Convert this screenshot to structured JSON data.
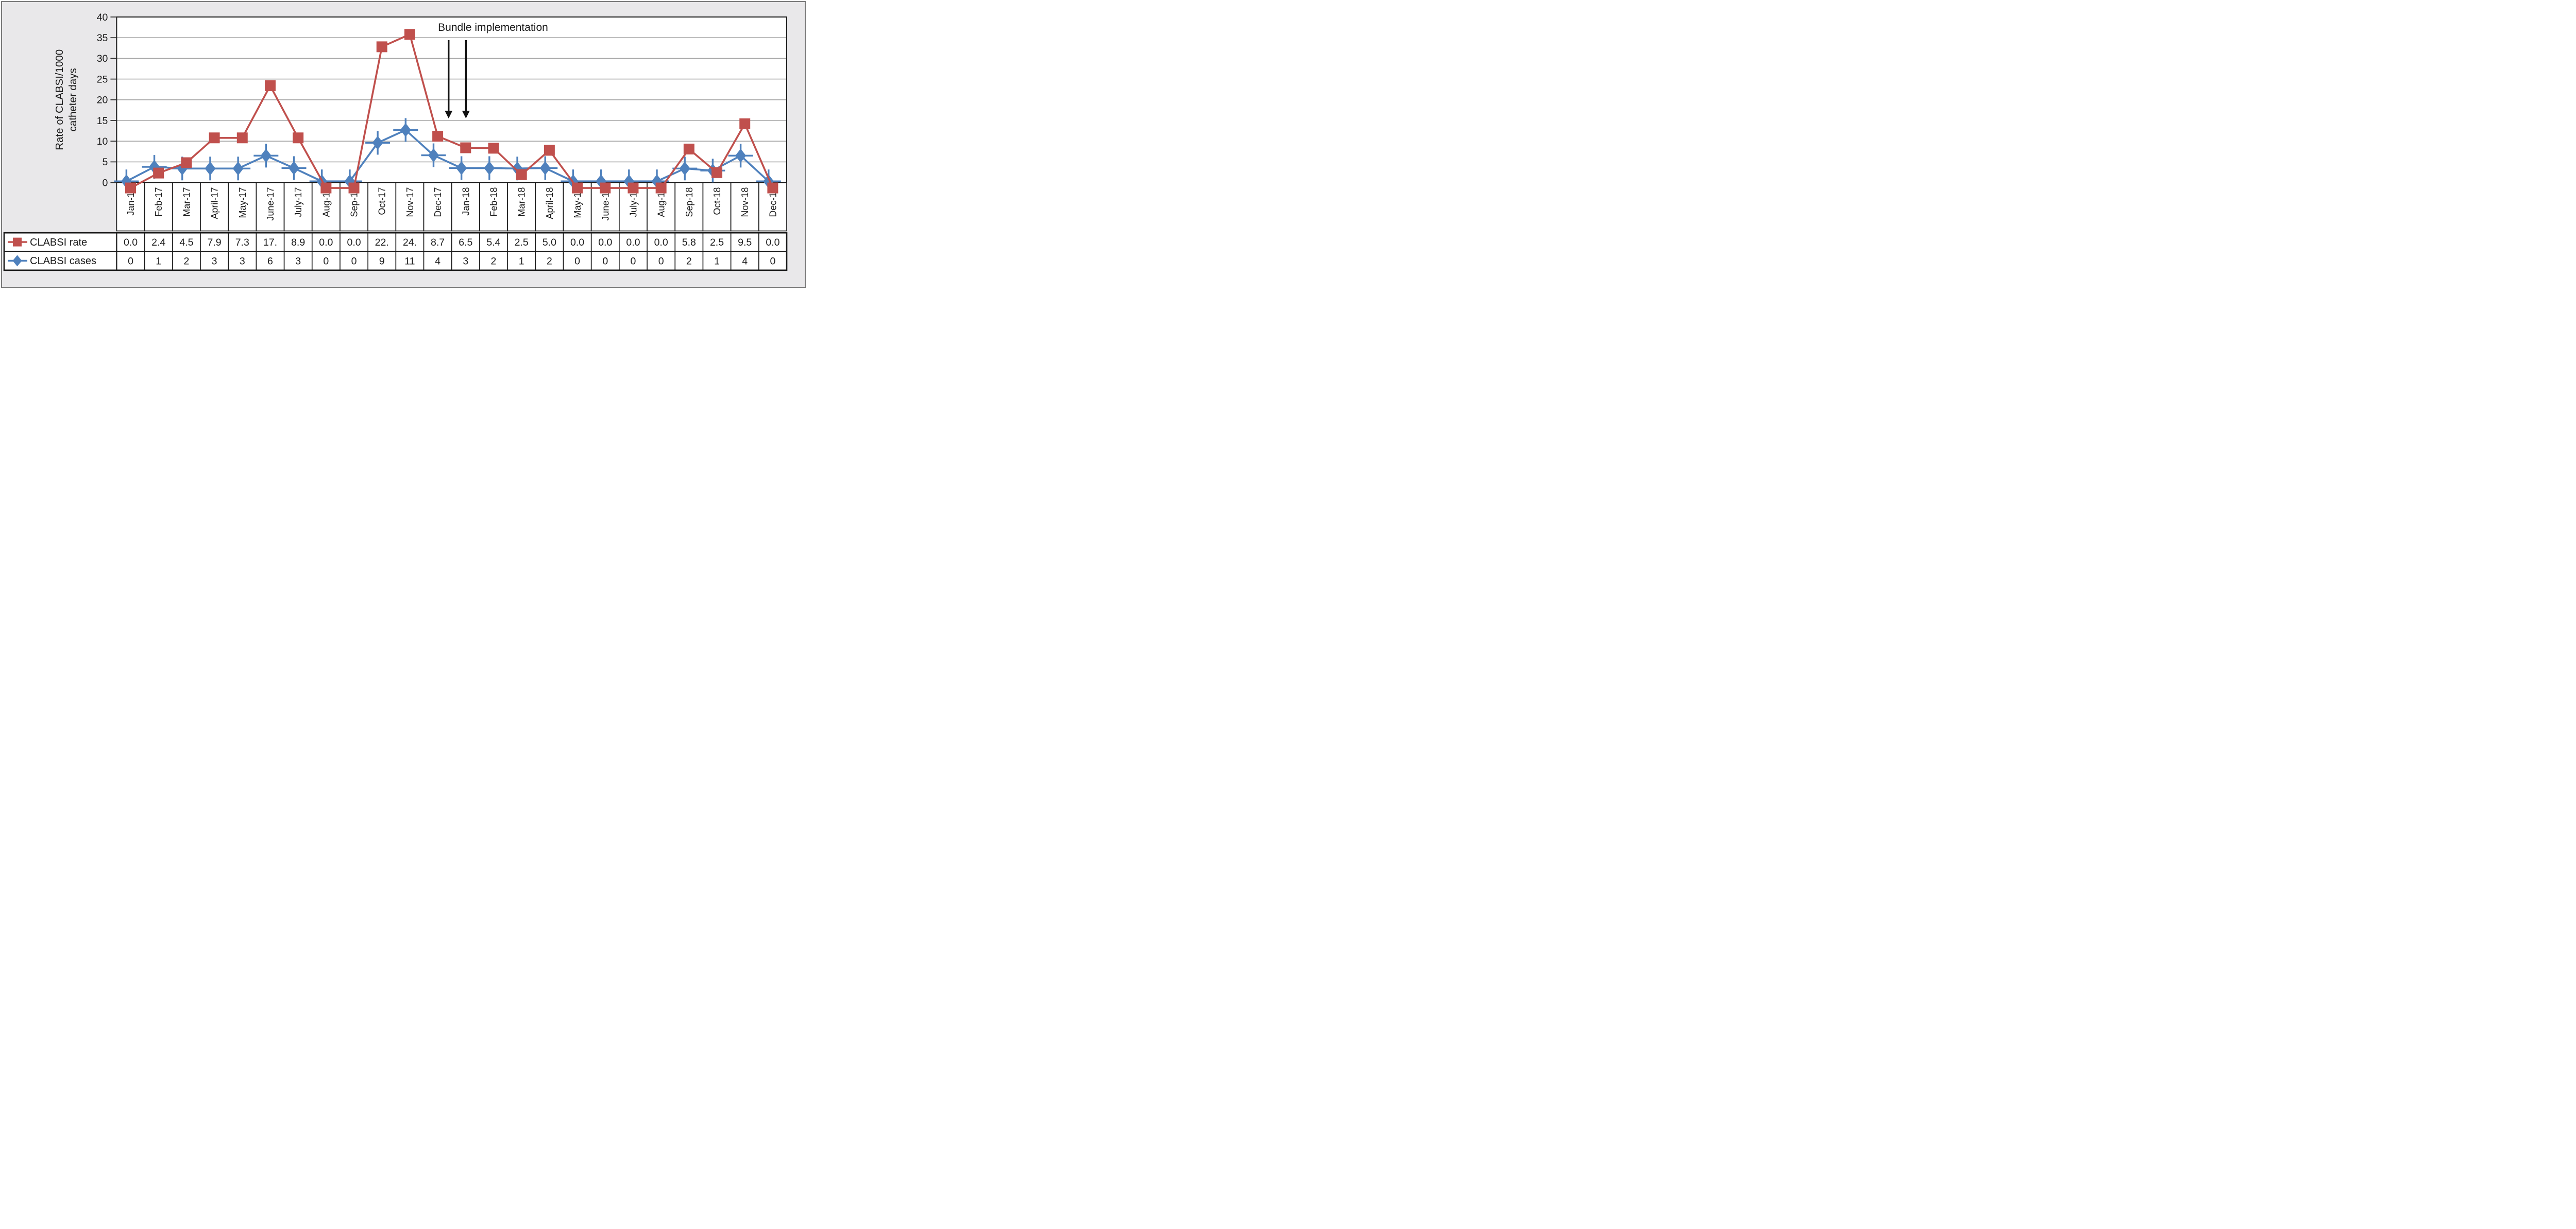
{
  "figure": {
    "background_color": "#e9e8ea",
    "border_color": "#7a7a7a",
    "plot_background": "#ffffff",
    "gridline_color": "#a6a6a6",
    "y_axis": {
      "title_lines": [
        "Rate of CLABSI/1000",
        "catheter days"
      ],
      "tick_labels": [
        "40",
        "35",
        "30",
        "25",
        "20",
        "15",
        "10",
        "5",
        "0"
      ]
    }
  },
  "chart_data": {
    "type": "line",
    "categories": [
      "Jan-17",
      "Feb-17",
      "Mar-17",
      "April-17",
      "May-17",
      "June-17",
      "July-17",
      "Aug-17",
      "Sep-17",
      "Oct-17",
      "Nov-17",
      "Dec-17",
      "Jan-18",
      "Feb-18",
      "Mar-18",
      "April-18",
      "May-18",
      "June-18",
      "July-18",
      "Aug-18",
      "Sep-18",
      "Oct-18",
      "Nov-18",
      "Dec-18"
    ],
    "series": [
      {
        "name": "CLABSI rate",
        "color": "#c0504d",
        "marker": "square",
        "values": [
          0.0,
          2.4,
          4.5,
          7.9,
          7.3,
          17,
          8.9,
          0.0,
          0.0,
          22,
          24,
          8.7,
          6.5,
          5.4,
          2.5,
          5.0,
          0.0,
          0.0,
          0.0,
          0.0,
          5.8,
          2.5,
          9.5,
          0.0
        ],
        "plotted": [
          -1.3,
          2.3,
          4.8,
          10.8,
          10.8,
          23.4,
          10.8,
          -1.3,
          -1.3,
          32.8,
          35.8,
          11.2,
          8.4,
          8.3,
          1.9,
          7.8,
          -1.3,
          -1.3,
          -1.3,
          -1.3,
          8.1,
          2.4,
          14.2,
          -1.3
        ]
      },
      {
        "name": "CLABSI cases",
        "color": "#4f81bd",
        "marker": "diamond-cross",
        "values": [
          0,
          1,
          2,
          3,
          3,
          6,
          3,
          0,
          0,
          9,
          11,
          4,
          3,
          2,
          1,
          2,
          0,
          0,
          0,
          0,
          2,
          1,
          4,
          0
        ],
        "plotted": [
          0.3,
          3.8,
          3.4,
          3.4,
          3.4,
          6.5,
          3.5,
          0.3,
          0.3,
          9.6,
          12.7,
          6.6,
          3.5,
          3.5,
          3.4,
          3.5,
          0.3,
          0.3,
          0.3,
          0.3,
          3.4,
          2.9,
          6.5,
          0.3
        ]
      }
    ],
    "ylabel": "Rate of CLABSI/1000 catheter days",
    "ylim": [
      0,
      40
    ],
    "yticks": [
      40,
      35,
      30,
      25,
      20,
      15,
      10,
      5,
      0
    ],
    "grid": true,
    "legend_position": "table-left",
    "annotation": {
      "text": "Bundle implementation",
      "arrow_month_positions": [
        11.89,
        12.51
      ],
      "arrow_value_span": [
        34.4,
        15.5
      ]
    }
  },
  "table": {
    "rows": [
      {
        "label": "CLABSI rate",
        "values": [
          "0.0",
          "2.4",
          "4.5",
          "7.9",
          "7.3",
          "17.",
          "8.9",
          "0.0",
          "0.0",
          "22.",
          "24.",
          "8.7",
          "6.5",
          "5.4",
          "2.5",
          "5.0",
          "0.0",
          "0.0",
          "0.0",
          "0.0",
          "5.8",
          "2.5",
          "9.5",
          "0.0"
        ]
      },
      {
        "label": "CLABSI cases",
        "values": [
          "0",
          "1",
          "2",
          "3",
          "3",
          "6",
          "3",
          "0",
          "0",
          "9",
          "11",
          "4",
          "3",
          "2",
          "1",
          "2",
          "0",
          "0",
          "0",
          "0",
          "2",
          "1",
          "4",
          "0"
        ]
      }
    ]
  }
}
